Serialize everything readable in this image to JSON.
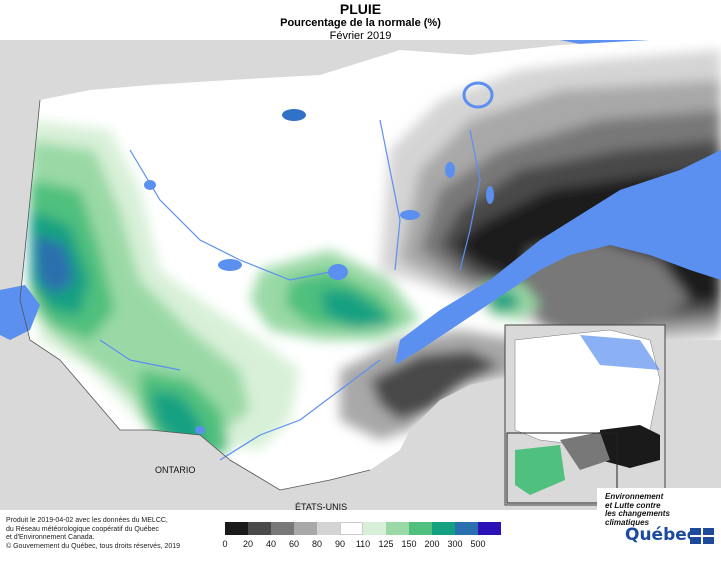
{
  "header": {
    "title": "PLUIE",
    "subtitle": "Pourcentage de la normale (%)",
    "period": "Février 2019"
  },
  "map": {
    "labels": {
      "ontario": "ONTARIO",
      "usa": "ÉTATS-UNIS"
    },
    "colors": {
      "water": "#5b8ff0",
      "land_outside": "#d9d9d9"
    }
  },
  "legend": {
    "classes": [
      {
        "label": "0",
        "color": "#1a1a1a"
      },
      {
        "label": "20",
        "color": "#4a4a4a"
      },
      {
        "label": "40",
        "color": "#787878"
      },
      {
        "label": "60",
        "color": "#a8a8a8"
      },
      {
        "label": "80",
        "color": "#d4d4d4"
      },
      {
        "label": "90",
        "color": "#ffffff"
      },
      {
        "label": "110",
        "color": "#d8f0d8"
      },
      {
        "label": "125",
        "color": "#9ad9a6"
      },
      {
        "label": "150",
        "color": "#4fc07e"
      },
      {
        "label": "200",
        "color": "#14a182"
      },
      {
        "label": "300",
        "color": "#2a6fae"
      },
      {
        "label": "500",
        "color": "#2a12b8"
      }
    ],
    "last_label": "500"
  },
  "footer": {
    "credit_line1": "Produit le 2019-04-02 avec les données du MELCC,",
    "credit_line2": "du Réseau météorologique coopératif du Québec",
    "credit_line3": "et d'Environnement Canada.",
    "copyright": "© Gouvernement du Québec, tous droits réservés, 2019"
  },
  "branding": {
    "line1": "Environnement",
    "line2": "et Lutte contre",
    "line3": "les changements",
    "line4": "climatiques",
    "logo": "Québec"
  }
}
